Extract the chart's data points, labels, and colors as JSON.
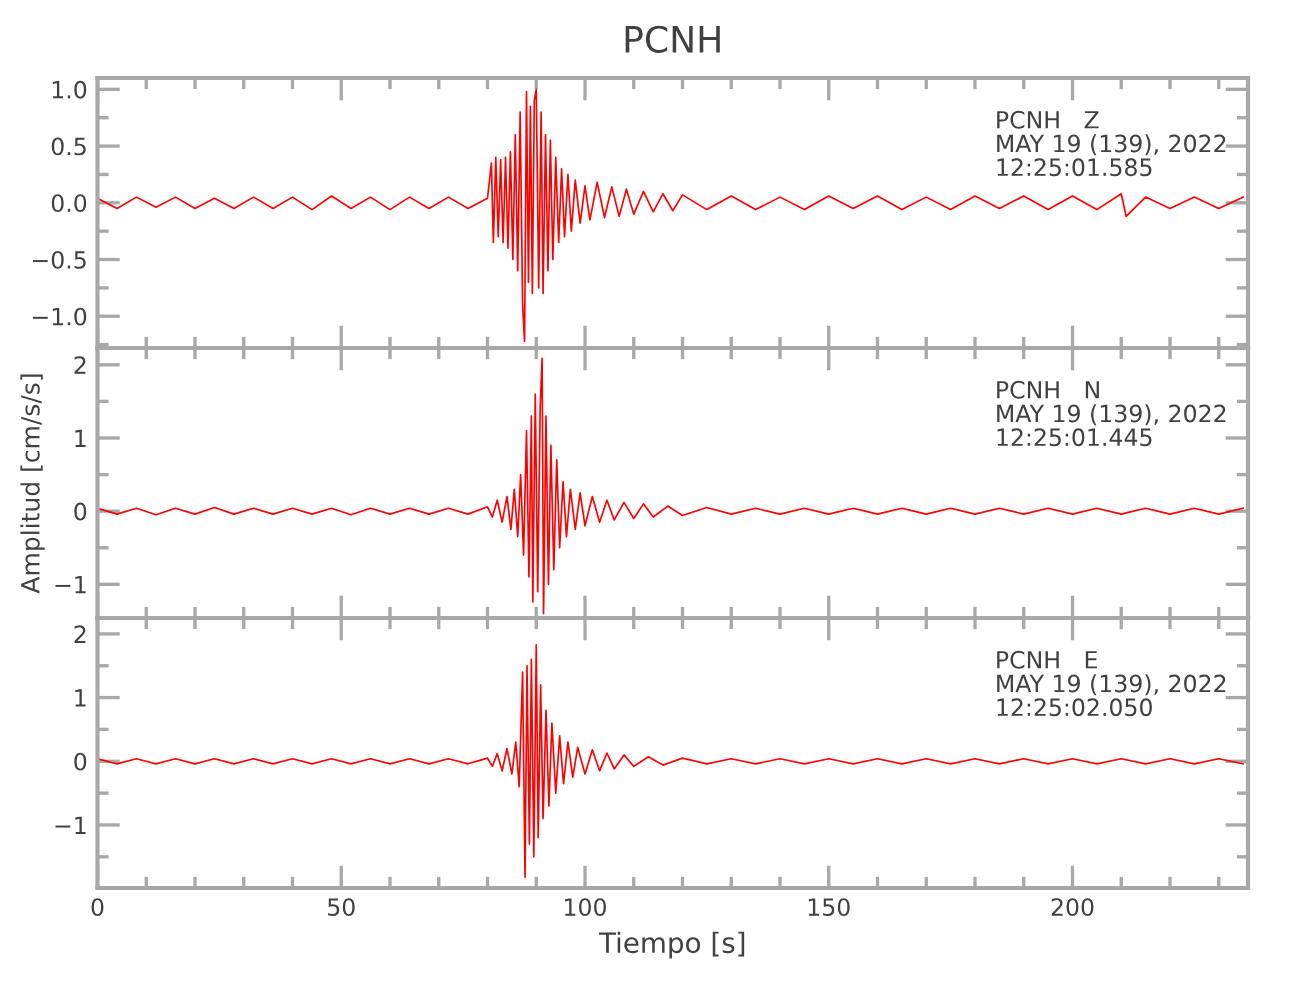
{
  "chart_data": [
    {
      "type": "line",
      "title": "PCNH",
      "tick_labels": "y",
      "annotations": [
        "PCNH   Z\nMAY 19 (139), 2022\n12:25:01.585"
      ],
      "xlim": [
        0,
        236
      ],
      "xticks": [
        0,
        {
          "value": 10,
          "label": null
        },
        {
          "value": 20,
          "label": null
        },
        {
          "value": 30,
          "label": null
        },
        {
          "value": 40,
          "label": null
        },
        50,
        {
          "value": 60,
          "label": null
        },
        {
          "value": 70,
          "label": null
        },
        {
          "value": 80,
          "label": null
        },
        {
          "value": 90,
          "label": null
        },
        100,
        {
          "value": 110,
          "label": null
        },
        {
          "value": 120,
          "label": null
        },
        {
          "value": 130,
          "label": null
        },
        {
          "value": 140,
          "label": null
        },
        150,
        {
          "value": 160,
          "label": null
        },
        {
          "value": 170,
          "label": null
        },
        {
          "value": 180,
          "label": null
        },
        {
          "value": 190,
          "label": null
        },
        200,
        {
          "value": 210,
          "label": null
        },
        {
          "value": 220,
          "label": null
        },
        {
          "value": 230,
          "label": null
        }
      ],
      "ylim": [
        -1.28,
        1.1
      ],
      "yticks": [
        {
          "value": -1.25,
          "label": null
        },
        {
          "value": -1.0,
          "label": "−1.0"
        },
        {
          "value": -0.75,
          "label": null
        },
        {
          "value": -0.5,
          "label": "−0.5"
        },
        {
          "value": -0.25,
          "label": null
        },
        {
          "value": 0.0,
          "label": "0.0"
        },
        {
          "value": 0.25,
          "label": null
        },
        {
          "value": 0.5,
          "label": "0.5"
        },
        {
          "value": 0.75,
          "label": null
        },
        {
          "value": 1.0,
          "label": "1.0"
        }
      ],
      "series": [
        {
          "color": "#ff0000",
          "x": [
            0,
            4,
            8,
            12,
            16,
            20,
            24,
            28,
            32,
            36,
            40,
            44,
            48,
            52,
            56,
            60,
            64,
            68,
            72,
            76,
            80,
            80.8,
            81.2,
            81.7,
            82.2,
            82.7,
            83.2,
            83.7,
            84.2,
            84.7,
            85.2,
            85.7,
            86.2,
            86.7,
            87.2,
            87.6,
            88.0,
            88.4,
            88.8,
            89.2,
            89.6,
            90.0,
            90.5,
            91.0,
            91.4,
            91.9,
            92.4,
            92.9,
            93.4,
            94.0,
            94.6,
            95.2,
            95.8,
            96.5,
            97.2,
            98.0,
            99.0,
            100,
            101,
            102.5,
            104,
            105.5,
            107,
            108.5,
            110,
            112,
            114,
            116,
            118,
            120,
            125,
            130,
            135,
            140,
            145,
            150,
            155,
            160,
            165,
            170,
            175,
            180,
            185,
            190,
            195,
            200,
            205,
            210,
            211,
            215,
            220,
            225,
            230,
            235
          ],
          "values": [
            0.04,
            -0.05,
            0.05,
            -0.04,
            0.05,
            -0.05,
            0.04,
            -0.05,
            0.05,
            -0.05,
            0.05,
            -0.06,
            0.06,
            -0.05,
            0.05,
            -0.06,
            0.05,
            -0.05,
            0.05,
            -0.05,
            0.04,
            0.35,
            -0.35,
            0.4,
            -0.3,
            0.38,
            -0.35,
            0.4,
            -0.4,
            0.45,
            -0.5,
            0.6,
            -0.6,
            0.8,
            -0.9,
            -1.22,
            0.98,
            -0.7,
            0.85,
            -0.8,
            0.9,
            1.0,
            -0.75,
            0.8,
            -0.8,
            0.6,
            -0.6,
            0.55,
            -0.5,
            0.4,
            -0.35,
            0.3,
            -0.3,
            0.25,
            -0.25,
            0.2,
            -0.18,
            0.15,
            -0.15,
            0.18,
            -0.13,
            0.14,
            -0.12,
            0.12,
            -0.1,
            0.1,
            -0.08,
            0.08,
            -0.07,
            0.07,
            -0.06,
            0.06,
            -0.06,
            0.05,
            -0.06,
            0.06,
            -0.05,
            0.06,
            -0.06,
            0.05,
            -0.06,
            0.06,
            -0.05,
            0.06,
            -0.06,
            0.06,
            -0.06,
            0.08,
            -0.12,
            0.05,
            -0.05,
            0.05,
            -0.05,
            0.05
          ]
        }
      ]
    },
    {
      "type": "line",
      "ylabel": "Amplitud [cm/s/s]",
      "tick_labels": "y",
      "annotations": [
        "PCNH   N\nMAY 19 (139), 2022\n12:25:01.445"
      ],
      "xlim": [
        0,
        236
      ],
      "xticks": [
        0,
        {
          "value": 10,
          "label": null
        },
        {
          "value": 20,
          "label": null
        },
        {
          "value": 30,
          "label": null
        },
        {
          "value": 40,
          "label": null
        },
        50,
        {
          "value": 60,
          "label": null
        },
        {
          "value": 70,
          "label": null
        },
        {
          "value": 80,
          "label": null
        },
        {
          "value": 90,
          "label": null
        },
        100,
        {
          "value": 110,
          "label": null
        },
        {
          "value": 120,
          "label": null
        },
        {
          "value": 130,
          "label": null
        },
        {
          "value": 140,
          "label": null
        },
        150,
        {
          "value": 160,
          "label": null
        },
        {
          "value": 170,
          "label": null
        },
        {
          "value": 180,
          "label": null
        },
        {
          "value": 190,
          "label": null
        },
        200,
        {
          "value": 210,
          "label": null
        },
        {
          "value": 220,
          "label": null
        },
        {
          "value": 230,
          "label": null
        }
      ],
      "ylim": [
        -1.46,
        2.23
      ],
      "yticks": [
        {
          "value": -1,
          "label": "−1"
        },
        {
          "value": -0.5,
          "label": null
        },
        0,
        {
          "value": 0.5,
          "label": null
        },
        1,
        {
          "value": 1.5,
          "label": null
        },
        2
      ],
      "series": [
        {
          "color": "#ff0000",
          "x": [
            0,
            4,
            8,
            12,
            16,
            20,
            24,
            28,
            32,
            36,
            40,
            44,
            48,
            52,
            56,
            60,
            64,
            68,
            72,
            76,
            80,
            81,
            82,
            83,
            84,
            84.8,
            85.5,
            86.2,
            86.8,
            87.4,
            88.0,
            88.5,
            89.0,
            89.3,
            89.8,
            90.3,
            90.8,
            91.2,
            91.5,
            92.0,
            92.5,
            93.0,
            93.6,
            94.2,
            94.8,
            95.5,
            96.2,
            97,
            98,
            99,
            100,
            101.5,
            103,
            104.5,
            106,
            108,
            110,
            112,
            114,
            117,
            120,
            125,
            130,
            135,
            140,
            145,
            150,
            155,
            160,
            165,
            170,
            175,
            180,
            185,
            190,
            195,
            200,
            205,
            210,
            215,
            220,
            225,
            230,
            235
          ],
          "values": [
            0.04,
            -0.04,
            0.04,
            -0.05,
            0.04,
            -0.04,
            0.05,
            -0.04,
            0.04,
            -0.04,
            0.04,
            -0.04,
            0.04,
            -0.05,
            0.04,
            -0.04,
            0.04,
            -0.04,
            0.04,
            -0.04,
            0.06,
            -0.08,
            0.15,
            -0.15,
            0.2,
            -0.25,
            0.3,
            -0.35,
            0.5,
            -0.6,
            1.1,
            -0.9,
            1.3,
            -1.24,
            1.6,
            -1.1,
            1.4,
            2.09,
            -1.4,
            1.3,
            -1.0,
            0.9,
            -0.8,
            0.7,
            -0.5,
            0.4,
            -0.35,
            0.3,
            -0.25,
            0.25,
            -0.2,
            0.2,
            -0.15,
            0.15,
            -0.12,
            0.12,
            -0.1,
            0.1,
            -0.08,
            0.07,
            -0.06,
            0.05,
            -0.04,
            0.04,
            -0.04,
            0.04,
            -0.04,
            0.04,
            -0.04,
            0.04,
            -0.04,
            0.04,
            -0.04,
            0.04,
            -0.04,
            0.04,
            -0.04,
            0.04,
            -0.04,
            0.04,
            -0.04,
            0.04,
            -0.04,
            0.04
          ]
        }
      ]
    },
    {
      "type": "line",
      "xlabel": "Tiempo [s]",
      "annotations": [
        "PCNH   E\nMAY 19 (139), 2022\n12:25:02.050"
      ],
      "xlim": [
        0,
        236
      ],
      "xticks": [
        0,
        {
          "value": 10,
          "label": null
        },
        {
          "value": 20,
          "label": null
        },
        {
          "value": 30,
          "label": null
        },
        {
          "value": 40,
          "label": null
        },
        50,
        {
          "value": 60,
          "label": null
        },
        {
          "value": 70,
          "label": null
        },
        {
          "value": 80,
          "label": null
        },
        {
          "value": 90,
          "label": null
        },
        100,
        {
          "value": 110,
          "label": null
        },
        {
          "value": 120,
          "label": null
        },
        {
          "value": 130,
          "label": null
        },
        {
          "value": 140,
          "label": null
        },
        150,
        {
          "value": 160,
          "label": null
        },
        {
          "value": 170,
          "label": null
        },
        {
          "value": 180,
          "label": null
        },
        {
          "value": 190,
          "label": null
        },
        200,
        {
          "value": 210,
          "label": null
        },
        {
          "value": 220,
          "label": null
        },
        {
          "value": 230,
          "label": null
        }
      ],
      "ylim": [
        -1.99,
        2.25
      ],
      "yticks": [
        {
          "value": -1.5,
          "label": null
        },
        {
          "value": -1,
          "label": "−1"
        },
        {
          "value": -0.5,
          "label": null
        },
        0,
        {
          "value": 0.5,
          "label": null
        },
        1,
        {
          "value": 1.5,
          "label": null
        },
        2
      ],
      "series": [
        {
          "color": "#ff0000",
          "x": [
            0,
            4,
            8,
            12,
            16,
            20,
            24,
            28,
            32,
            36,
            40,
            44,
            48,
            52,
            56,
            60,
            64,
            68,
            72,
            76,
            80,
            81,
            82,
            83,
            84,
            85,
            85.8,
            86.5,
            87.2,
            87.7,
            88.1,
            88.6,
            89.0,
            89.5,
            90.0,
            90.4,
            90.9,
            91.4,
            92,
            92.6,
            93.2,
            94,
            94.8,
            95.6,
            96.5,
            97.5,
            98.5,
            100,
            101.5,
            103,
            104.5,
            106,
            108,
            110,
            113,
            116,
            120,
            125,
            130,
            135,
            140,
            145,
            150,
            155,
            160,
            165,
            170,
            175,
            180,
            185,
            190,
            195,
            200,
            205,
            210,
            215,
            220,
            225,
            230,
            235
          ],
          "values": [
            0.04,
            -0.04,
            0.04,
            -0.04,
            0.04,
            -0.04,
            0.04,
            -0.04,
            0.04,
            -0.04,
            0.04,
            -0.04,
            0.04,
            -0.04,
            0.04,
            -0.04,
            0.04,
            -0.04,
            0.04,
            -0.04,
            0.05,
            -0.08,
            0.12,
            -0.15,
            0.2,
            -0.2,
            0.3,
            -0.4,
            1.4,
            -1.82,
            1.5,
            -1.3,
            1.6,
            -1.5,
            1.83,
            -1.2,
            1.2,
            -0.9,
            0.8,
            -0.7,
            0.6,
            -0.5,
            0.4,
            -0.35,
            0.3,
            -0.25,
            0.22,
            -0.2,
            0.18,
            -0.15,
            0.13,
            -0.12,
            0.1,
            -0.08,
            0.07,
            -0.06,
            0.05,
            -0.04,
            0.04,
            -0.04,
            0.04,
            -0.04,
            0.04,
            -0.04,
            0.04,
            -0.04,
            0.04,
            -0.04,
            0.04,
            -0.04,
            0.04,
            -0.04,
            0.04,
            -0.04,
            0.04,
            -0.04,
            0.04,
            -0.04,
            0.04,
            -0.04
          ]
        }
      ]
    }
  ]
}
